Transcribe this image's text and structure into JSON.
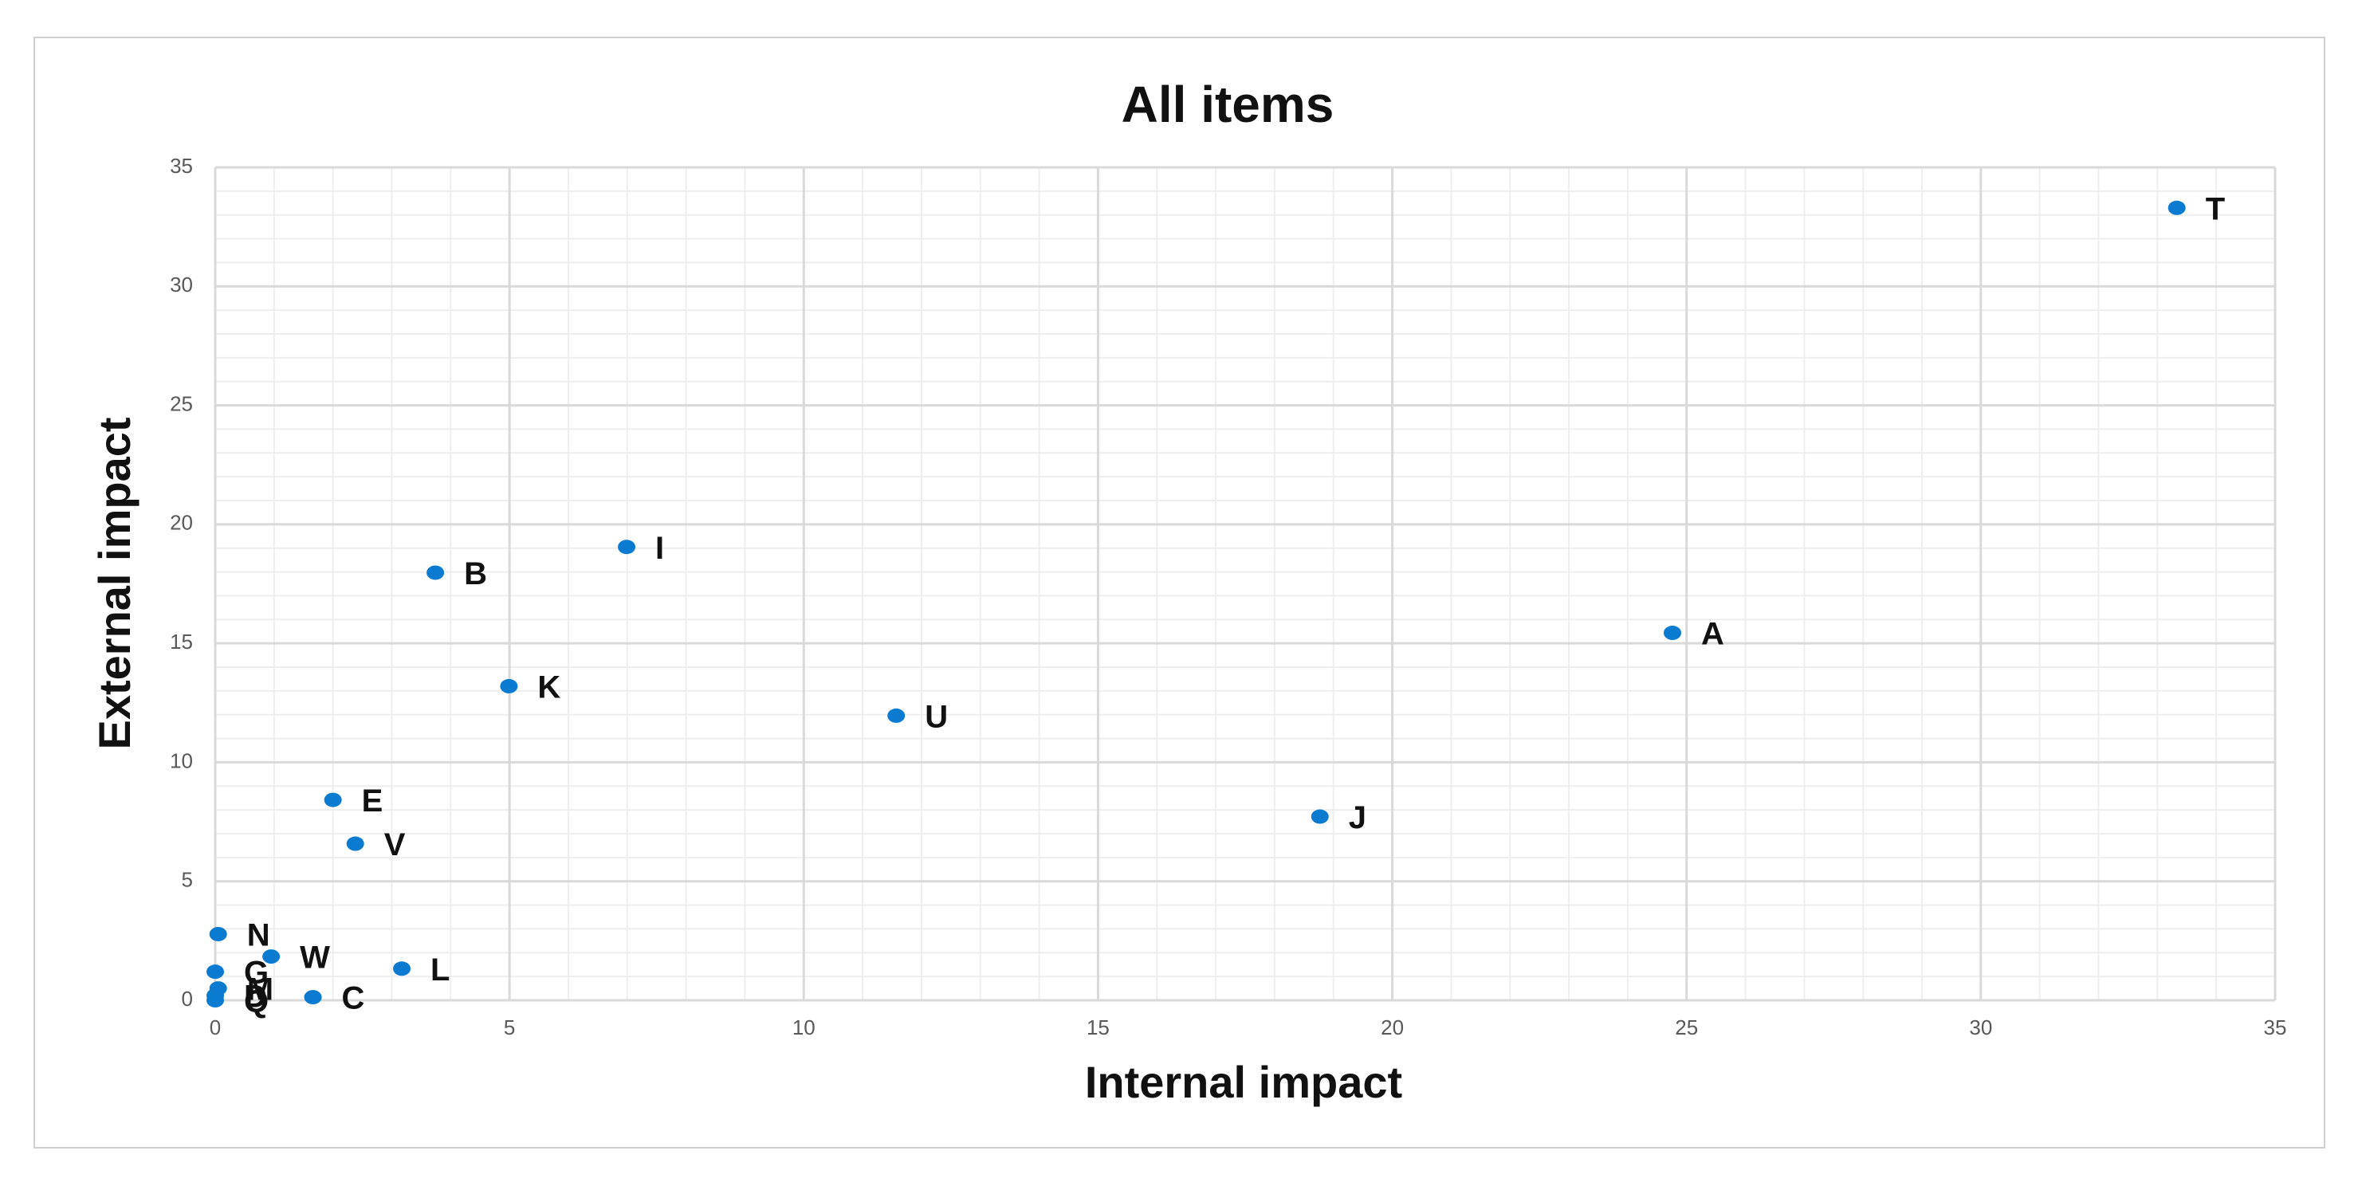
{
  "chart_data": {
    "type": "scatter",
    "title": "All items",
    "xlabel": "Internal impact",
    "ylabel": "External impact",
    "x": [
      33.33,
      24.76,
      6.99,
      3.74,
      4.99,
      11.57,
      18.77,
      2.0,
      2.38,
      0.05,
      0.95,
      3.17,
      0,
      1.66,
      0.05,
      0,
      0
    ],
    "values": [
      33.3,
      15.44,
      19.05,
      17.97,
      13.2,
      11.96,
      7.72,
      8.42,
      6.58,
      2.78,
      1.84,
      1.33,
      1.2,
      0.13,
      0.5,
      0.2,
      0
    ],
    "point_labels": [
      "T",
      "A",
      "I",
      "B",
      "K",
      "U",
      "J",
      "E",
      "V",
      "N",
      "W",
      "L",
      "G",
      "C",
      "M",
      "D",
      "Q"
    ],
    "color": "#0b7ad1",
    "xlim": [
      0,
      35
    ],
    "ylim": [
      0,
      35
    ],
    "xticks": [
      0,
      5,
      10,
      15,
      20,
      25,
      30,
      35
    ],
    "yticks": [
      0,
      5,
      10,
      15,
      20,
      25,
      30,
      35
    ],
    "grid": true,
    "minor_grid_step": 1
  }
}
